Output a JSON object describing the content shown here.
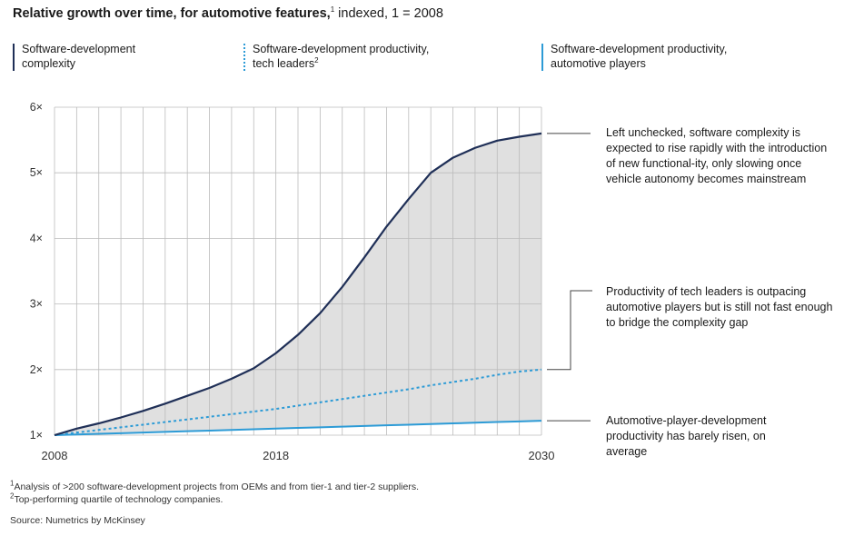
{
  "title": {
    "bold": "Relative growth over time, for automotive features,",
    "sup": "1",
    "rest": " indexed, 1 = 2008"
  },
  "legend": [
    {
      "line1": "Software-development",
      "line2": "complexity",
      "sup": ""
    },
    {
      "line1": "Software-development productivity,",
      "line2": "tech leaders",
      "sup": "2"
    },
    {
      "line1": "Software-development productivity,",
      "line2": "automotive players",
      "sup": ""
    }
  ],
  "annotations": [
    "Left unchecked, software complexity is expected to rise rapidly with the introduction of new functional-ity, only slowing once vehicle autonomy becomes mainstream",
    "Productivity of tech leaders is outpacing automotive players but is still not fast enough to bridge the complexity gap",
    "Automotive-player-development productivity has barely risen, on average"
  ],
  "footnotes": {
    "f1_sup": "1",
    "f1": "Analysis of >200 software-development projects from OEMs and from tier-1 and tier-2 suppliers.",
    "f2_sup": "2",
    "f2": "Top-performing quartile of technology companies.",
    "source": "Source: Numetrics by McKinsey"
  },
  "colors": {
    "complexity": "#1f2f57",
    "tech_leaders": "#2d9bd6",
    "automotive": "#2d9bd6",
    "gap_fill": "#e0e0e0",
    "grid": "#bbbbbb"
  },
  "chart_data": {
    "type": "line",
    "x": [
      2008,
      2009,
      2010,
      2011,
      2012,
      2013,
      2014,
      2015,
      2016,
      2017,
      2018,
      2019,
      2020,
      2021,
      2022,
      2023,
      2024,
      2025,
      2026,
      2027,
      2028,
      2029,
      2030
    ],
    "series": [
      {
        "name": "Software-development complexity",
        "style": "solid",
        "values": [
          1.0,
          1.1,
          1.18,
          1.27,
          1.37,
          1.48,
          1.6,
          1.72,
          1.86,
          2.02,
          2.25,
          2.53,
          2.86,
          3.26,
          3.71,
          4.18,
          4.6,
          5.0,
          5.23,
          5.38,
          5.49,
          5.55,
          5.6
        ]
      },
      {
        "name": "Software-development productivity, tech leaders",
        "style": "dotted",
        "values": [
          1.0,
          1.04,
          1.08,
          1.12,
          1.16,
          1.2,
          1.24,
          1.28,
          1.32,
          1.36,
          1.4,
          1.45,
          1.5,
          1.55,
          1.6,
          1.65,
          1.7,
          1.76,
          1.81,
          1.86,
          1.92,
          1.97,
          2.0
        ]
      },
      {
        "name": "Software-development productivity, automotive players",
        "style": "solid",
        "values": [
          1.0,
          1.01,
          1.02,
          1.03,
          1.04,
          1.05,
          1.06,
          1.07,
          1.08,
          1.09,
          1.1,
          1.11,
          1.12,
          1.13,
          1.14,
          1.15,
          1.16,
          1.17,
          1.18,
          1.19,
          1.2,
          1.21,
          1.22
        ]
      }
    ],
    "ylim": [
      1,
      6
    ],
    "yticks": [
      1,
      2,
      3,
      4,
      5,
      6
    ],
    "ytick_labels": [
      "1×",
      "2×",
      "3×",
      "4×",
      "5×",
      "6×"
    ],
    "xtick_labels": [
      {
        "x": 2008,
        "label": "2008"
      },
      {
        "x": 2018,
        "label": "2018"
      },
      {
        "x": 2030,
        "label": "2030"
      }
    ],
    "grid": true,
    "shaded_area": "between complexity and automotive players"
  }
}
